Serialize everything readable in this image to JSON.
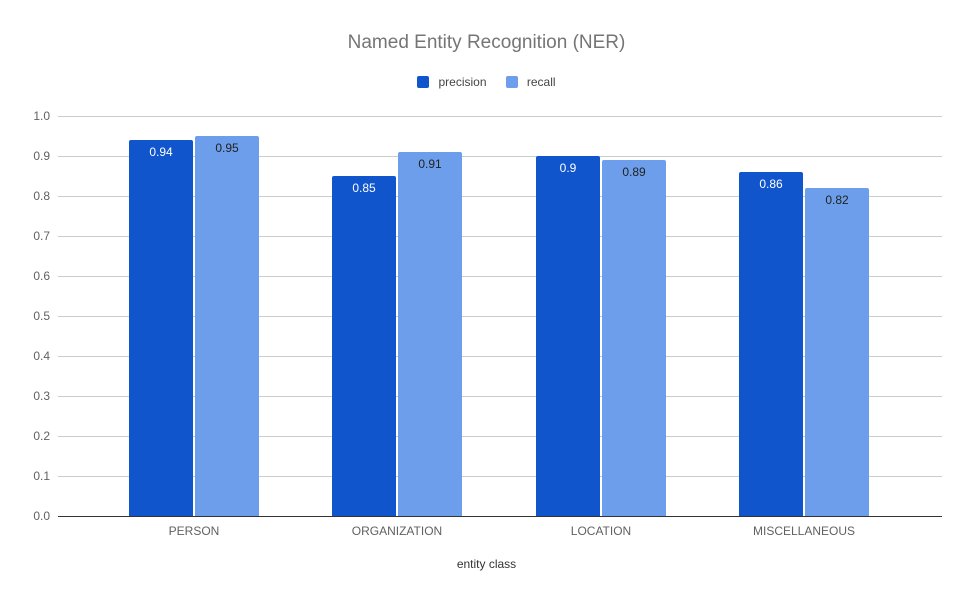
{
  "chart_data": {
    "type": "bar",
    "title": "Named Entity Recognition (NER)",
    "xlabel": "entity class",
    "ylabel": "",
    "ylim": [
      0,
      1.0
    ],
    "yticks": [
      "0.0",
      "0.1",
      "0.2",
      "0.3",
      "0.4",
      "0.5",
      "0.6",
      "0.7",
      "0.8",
      "0.9",
      "1.0"
    ],
    "categories": [
      "PERSON",
      "ORGANIZATION",
      "LOCATION",
      "MISCELLANEOUS"
    ],
    "series": [
      {
        "name": "precision",
        "color": "#1155cc",
        "label_color": "#ffffff",
        "values": [
          0.94,
          0.85,
          0.9,
          0.86
        ],
        "labels": [
          "0.94",
          "0.85",
          "0.9",
          "0.86"
        ]
      },
      {
        "name": "recall",
        "color": "#6d9eeb",
        "label_color": "#222222",
        "values": [
          0.95,
          0.91,
          0.89,
          0.82
        ],
        "labels": [
          "0.95",
          "0.91",
          "0.89",
          "0.82"
        ]
      }
    ],
    "grid": true,
    "legend_position": "top"
  }
}
